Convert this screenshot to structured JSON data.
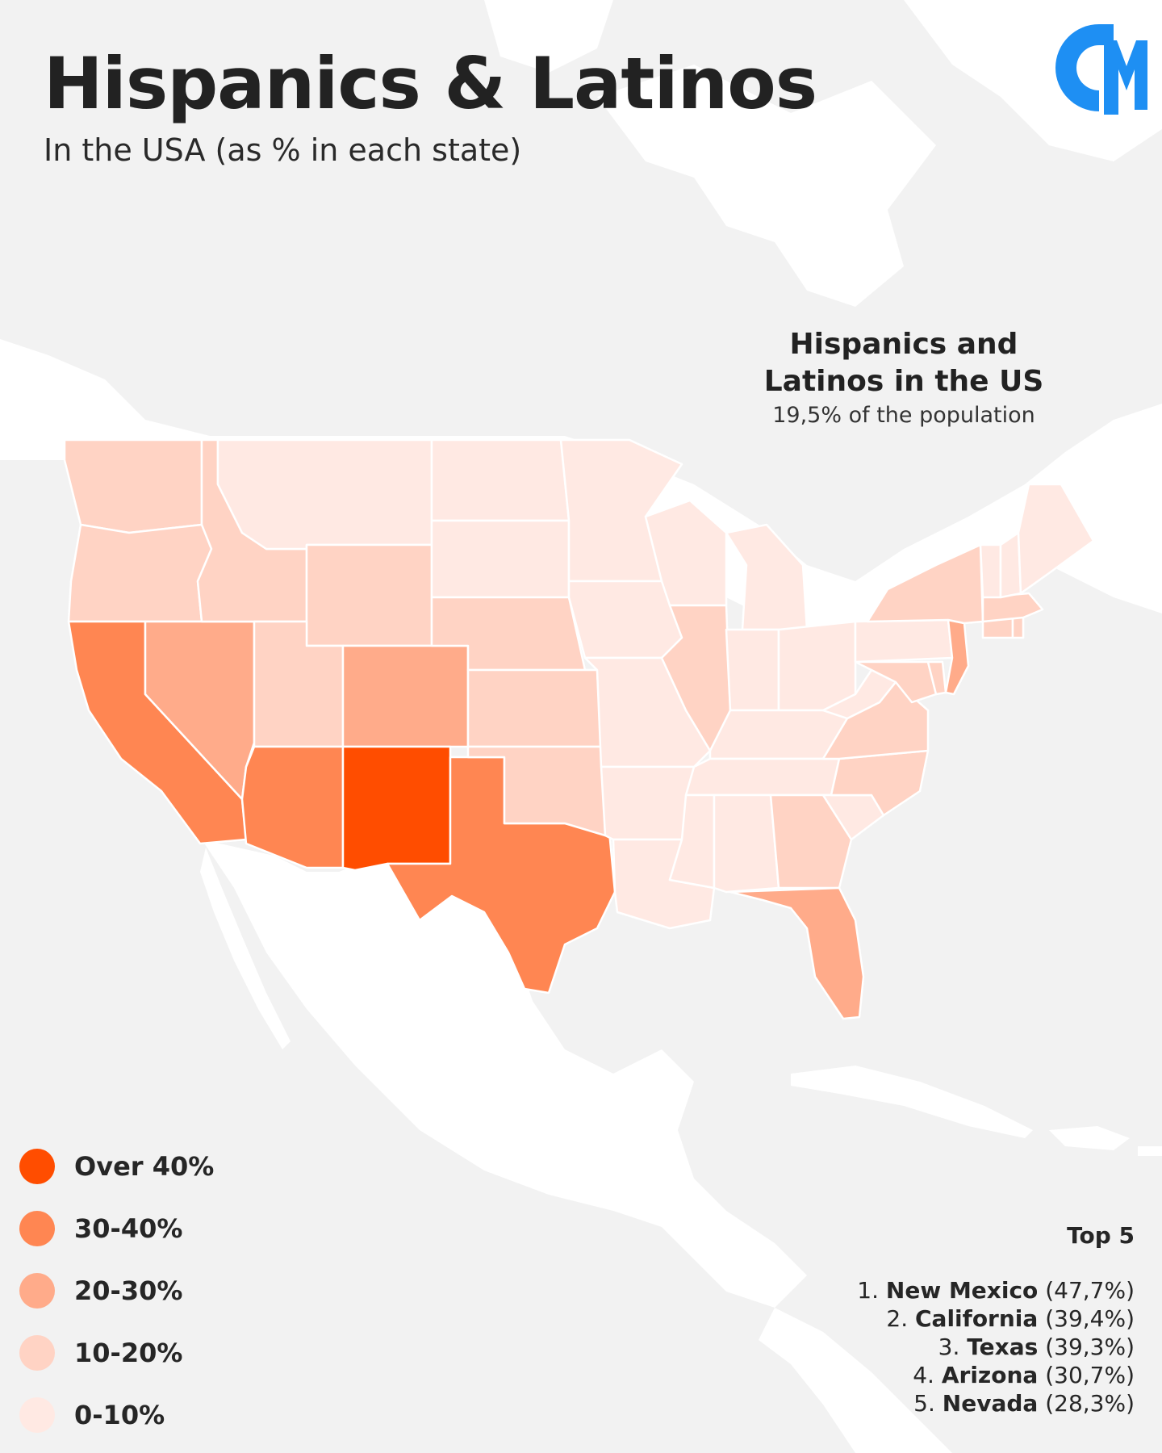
{
  "header": {
    "title": "Hispanics & Latinos",
    "subtitle": "In the USA (as % in each state)"
  },
  "logo": {
    "text": "GM",
    "color": "#1e8ff3",
    "icon": "gm-logo"
  },
  "callout": {
    "title_line1": "Hispanics and",
    "title_line2": "Latinos in the US",
    "subtitle": "19,5% of the population"
  },
  "legend": {
    "items": [
      {
        "label": "Over 40%",
        "color": "#ff4d00"
      },
      {
        "label": "30-40%",
        "color": "#ff8652"
      },
      {
        "label": "20-30%",
        "color": "#ffab8a"
      },
      {
        "label": "10-20%",
        "color": "#ffd3c4"
      },
      {
        "label": "0-10%",
        "color": "#ffe9e3"
      }
    ]
  },
  "top5": {
    "title": "Top 5",
    "items": [
      {
        "rank": "1.",
        "name": "New Mexico",
        "value": "(47,7%)"
      },
      {
        "rank": "2.",
        "name": "California",
        "value": "(39,4%)"
      },
      {
        "rank": "3.",
        "name": "Texas",
        "value": "(39,3%)"
      },
      {
        "rank": "4.",
        "name": "Arizona",
        "value": "(30,7%)"
      },
      {
        "rank": "5.",
        "name": "Nevada",
        "value": "(28,3%)"
      }
    ]
  },
  "map": {
    "background_color": "#f2f2f2",
    "land_color": "#ffffff",
    "states": [
      {
        "name": "Washington",
        "bin": "10-20%"
      },
      {
        "name": "Oregon",
        "bin": "10-20%"
      },
      {
        "name": "California",
        "bin": "30-40%"
      },
      {
        "name": "Nevada",
        "bin": "20-30%"
      },
      {
        "name": "Idaho",
        "bin": "10-20%"
      },
      {
        "name": "Montana",
        "bin": "0-10%"
      },
      {
        "name": "Wyoming",
        "bin": "10-20%"
      },
      {
        "name": "Utah",
        "bin": "10-20%"
      },
      {
        "name": "Arizona",
        "bin": "30-40%"
      },
      {
        "name": "Colorado",
        "bin": "20-30%"
      },
      {
        "name": "New Mexico",
        "bin": "Over 40%"
      },
      {
        "name": "Texas",
        "bin": "30-40%"
      },
      {
        "name": "North Dakota",
        "bin": "0-10%"
      },
      {
        "name": "South Dakota",
        "bin": "0-10%"
      },
      {
        "name": "Nebraska",
        "bin": "10-20%"
      },
      {
        "name": "Kansas",
        "bin": "10-20%"
      },
      {
        "name": "Oklahoma",
        "bin": "10-20%"
      },
      {
        "name": "Minnesota",
        "bin": "0-10%"
      },
      {
        "name": "Iowa",
        "bin": "0-10%"
      },
      {
        "name": "Missouri",
        "bin": "0-10%"
      },
      {
        "name": "Arkansas",
        "bin": "0-10%"
      },
      {
        "name": "Louisiana",
        "bin": "0-10%"
      },
      {
        "name": "Wisconsin",
        "bin": "0-10%"
      },
      {
        "name": "Illinois",
        "bin": "10-20%"
      },
      {
        "name": "Michigan",
        "bin": "0-10%"
      },
      {
        "name": "Indiana",
        "bin": "0-10%"
      },
      {
        "name": "Ohio",
        "bin": "0-10%"
      },
      {
        "name": "Kentucky",
        "bin": "0-10%"
      },
      {
        "name": "Tennessee",
        "bin": "0-10%"
      },
      {
        "name": "Mississippi",
        "bin": "0-10%"
      },
      {
        "name": "Alabama",
        "bin": "0-10%"
      },
      {
        "name": "Georgia",
        "bin": "10-20%"
      },
      {
        "name": "Florida",
        "bin": "20-30%"
      },
      {
        "name": "South Carolina",
        "bin": "0-10%"
      },
      {
        "name": "North Carolina",
        "bin": "10-20%"
      },
      {
        "name": "Virginia",
        "bin": "10-20%"
      },
      {
        "name": "West Virginia",
        "bin": "0-10%"
      },
      {
        "name": "Maryland",
        "bin": "10-20%"
      },
      {
        "name": "Delaware",
        "bin": "10-20%"
      },
      {
        "name": "Pennsylvania",
        "bin": "0-10%"
      },
      {
        "name": "New Jersey",
        "bin": "20-30%"
      },
      {
        "name": "New York",
        "bin": "10-20%"
      },
      {
        "name": "Connecticut",
        "bin": "10-20%"
      },
      {
        "name": "Rhode Island",
        "bin": "10-20%"
      },
      {
        "name": "Massachusetts",
        "bin": "10-20%"
      },
      {
        "name": "Vermont",
        "bin": "0-10%"
      },
      {
        "name": "New Hampshire",
        "bin": "0-10%"
      },
      {
        "name": "Maine",
        "bin": "0-10%"
      }
    ]
  }
}
